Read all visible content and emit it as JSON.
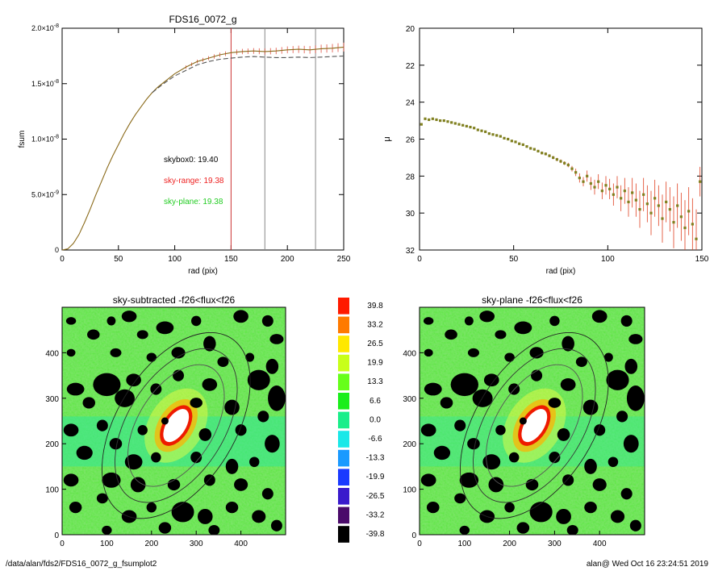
{
  "chart_data": [
    {
      "type": "line",
      "title": "FDS16_0072_g",
      "xlabel": "rad (pix)",
      "ylabel": "fsum",
      "xlim": [
        0,
        250
      ],
      "ylim": [
        0,
        2e-08
      ],
      "x_ticks": [
        "0",
        "50",
        "100",
        "150",
        "200",
        "250"
      ],
      "y_ticks": [
        {
          "v": 0,
          "label": "0"
        },
        {
          "v": 5e-09,
          "label": "5.0×10",
          "exp": "-9"
        },
        {
          "v": 1e-08,
          "label": "1.0×10",
          "exp": "-8"
        },
        {
          "v": 1.5e-08,
          "label": "1.5×10",
          "exp": "-8"
        },
        {
          "v": 2e-08,
          "label": "2.0×10",
          "exp": "-8"
        }
      ],
      "vlines": [
        {
          "x": 150,
          "color": "#cc3333"
        },
        {
          "x": 180,
          "color": "#888888"
        },
        {
          "x": 225,
          "color": "#888888"
        }
      ],
      "series": [
        {
          "style": "solid",
          "color": "#8a6a1a",
          "x": [
            0,
            5,
            10,
            15,
            20,
            25,
            30,
            35,
            40,
            45,
            50,
            55,
            60,
            65,
            70,
            75,
            80,
            85,
            90,
            95,
            100,
            110,
            120,
            130,
            140,
            150,
            160,
            170,
            180,
            190,
            200,
            210,
            220,
            230,
            240,
            250
          ],
          "y": [
            0,
            1e-10,
            6e-10,
            1.4e-09,
            2.5e-09,
            3.7e-09,
            5e-09,
            6.2e-09,
            7.4e-09,
            8.5e-09,
            9.5e-09,
            1.05e-08,
            1.14e-08,
            1.22e-08,
            1.29e-08,
            1.36e-08,
            1.42e-08,
            1.47e-08,
            1.51e-08,
            1.55e-08,
            1.59e-08,
            1.65e-08,
            1.7e-08,
            1.73e-08,
            1.76e-08,
            1.78e-08,
            1.79e-08,
            1.795e-08,
            1.79e-08,
            1.795e-08,
            1.805e-08,
            1.81e-08,
            1.805e-08,
            1.815e-08,
            1.82e-08,
            1.83e-08
          ]
        },
        {
          "style": "dashed",
          "color": "#555555",
          "x": [
            80,
            90,
            100,
            110,
            120,
            130,
            140,
            150,
            160,
            170,
            180,
            190,
            200,
            210,
            220,
            230,
            240,
            250
          ],
          "y": [
            1.42e-08,
            1.5e-08,
            1.57e-08,
            1.62e-08,
            1.67e-08,
            1.7e-08,
            1.72e-08,
            1.73e-08,
            1.74e-08,
            1.745e-08,
            1.74e-08,
            1.735e-08,
            1.735e-08,
            1.74e-08,
            1.735e-08,
            1.74e-08,
            1.745e-08,
            1.75e-08
          ]
        }
      ],
      "annotations": [
        {
          "label": "skybox0:",
          "value": "19.40",
          "color": "#000000"
        },
        {
          "label": "sky-range:",
          "value": "19.38",
          "color": "#ee2222"
        },
        {
          "label": "sky-plane:",
          "value": "19.38",
          "color": "#22cc22"
        }
      ]
    },
    {
      "type": "scatter",
      "title": "",
      "xlabel": "rad (pix)",
      "ylabel": "μ",
      "xlim": [
        0,
        150
      ],
      "ylim": [
        32,
        20
      ],
      "x_ticks": [
        "0",
        "50",
        "100",
        "150"
      ],
      "y_ticks": [
        "20",
        "22",
        "24",
        "26",
        "28",
        "30",
        "32"
      ],
      "x": [
        1,
        3,
        5,
        7,
        9,
        11,
        13,
        15,
        17,
        19,
        21,
        23,
        25,
        27,
        29,
        31,
        33,
        35,
        37,
        39,
        41,
        43,
        45,
        47,
        49,
        51,
        53,
        55,
        57,
        59,
        61,
        63,
        65,
        67,
        69,
        71,
        73,
        75,
        77,
        79,
        81,
        83,
        85,
        87,
        89,
        91,
        93,
        95,
        97,
        99,
        101,
        103,
        105,
        107,
        109,
        111,
        113,
        115,
        117,
        119,
        121,
        123,
        125,
        127,
        129,
        131,
        133,
        135,
        137,
        139,
        141,
        143,
        145,
        147,
        149
      ],
      "y": [
        25.2,
        24.9,
        24.95,
        24.9,
        24.95,
        25.0,
        25.0,
        25.05,
        25.1,
        25.15,
        25.2,
        25.25,
        25.3,
        25.35,
        25.4,
        25.5,
        25.55,
        25.6,
        25.7,
        25.75,
        25.8,
        25.85,
        25.95,
        26.0,
        26.1,
        26.15,
        26.25,
        26.3,
        26.4,
        26.5,
        26.55,
        26.65,
        26.75,
        26.8,
        26.9,
        27.0,
        27.1,
        27.2,
        27.3,
        27.4,
        27.6,
        27.8,
        28.1,
        28.3,
        28.0,
        28.4,
        28.6,
        28.3,
        28.8,
        28.5,
        28.7,
        29.0,
        28.6,
        29.2,
        28.8,
        29.4,
        28.9,
        29.3,
        29.8,
        29.0,
        29.5,
        30.0,
        29.2,
        29.6,
        30.3,
        29.4,
        29.8,
        30.5,
        29.6,
        30.2,
        30.8,
        29.9,
        30.6,
        31.4,
        28.3
      ],
      "err": [
        0.05,
        0.05,
        0.05,
        0.05,
        0.05,
        0.05,
        0.05,
        0.05,
        0.05,
        0.05,
        0.05,
        0.05,
        0.05,
        0.05,
        0.05,
        0.05,
        0.05,
        0.05,
        0.05,
        0.05,
        0.05,
        0.05,
        0.05,
        0.06,
        0.06,
        0.06,
        0.06,
        0.06,
        0.06,
        0.07,
        0.07,
        0.07,
        0.08,
        0.08,
        0.08,
        0.09,
        0.09,
        0.1,
        0.1,
        0.12,
        0.15,
        0.2,
        0.25,
        0.25,
        0.3,
        0.35,
        0.4,
        0.4,
        0.45,
        0.5,
        0.55,
        0.6,
        0.6,
        0.7,
        0.7,
        0.8,
        0.8,
        0.9,
        1.0,
        0.9,
        1.0,
        1.2,
        1.0,
        1.1,
        1.3,
        1.1,
        1.2,
        1.4,
        1.2,
        1.3,
        1.5,
        1.3,
        1.4,
        1.6,
        0.8
      ],
      "color": "#e04020",
      "marker_color": "#808020"
    },
    {
      "type": "heatmap",
      "title": "sky-subtracted -f26<flux<f26",
      "xlim": [
        0,
        500
      ],
      "ylim": [
        0,
        500
      ],
      "x_ticks": [
        "0",
        "100",
        "200",
        "300",
        "400"
      ],
      "y_ticks": [
        "0",
        "100",
        "200",
        "300",
        "400"
      ]
    },
    {
      "type": "heatmap",
      "title": "sky-plane -f26<flux<f26",
      "xlim": [
        0,
        500
      ],
      "ylim": [
        0,
        500
      ],
      "x_ticks": [
        "0",
        "100",
        "200",
        "300",
        "400"
      ],
      "y_ticks": [
        "0",
        "100",
        "200",
        "300",
        "400"
      ]
    }
  ],
  "colorbar": {
    "levels": [
      {
        "label": "39.8",
        "color": "#ff1a00"
      },
      {
        "label": "33.2",
        "color": "#ff7a00"
      },
      {
        "label": "26.5",
        "color": "#ffe800"
      },
      {
        "label": "19.9",
        "color": "#c8ff1a"
      },
      {
        "label": "13.3",
        "color": "#66ff1a"
      },
      {
        "label": "6.6",
        "color": "#1aee1a"
      },
      {
        "label": "0.0",
        "color": "#1aee8a"
      },
      {
        "label": "-6.6",
        "color": "#1ae8e8"
      },
      {
        "label": "-13.3",
        "color": "#1a9aff"
      },
      {
        "label": "-19.9",
        "color": "#1a3aff"
      },
      {
        "label": "-26.5",
        "color": "#3a1acc"
      },
      {
        "label": "-33.2",
        "color": "#4a0a6a"
      },
      {
        "label": "-39.8",
        "color": "#000000"
      }
    ]
  },
  "footer": {
    "path": "/data/alan/fds2/FDS16_0072_g_fsumplot2",
    "stamp": "alan@  Wed Oct 16 23:24:51 2019"
  }
}
